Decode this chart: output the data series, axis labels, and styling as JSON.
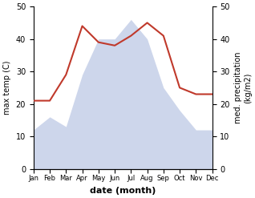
{
  "months": [
    "Jan",
    "Feb",
    "Mar",
    "Apr",
    "May",
    "Jun",
    "Jul",
    "Aug",
    "Sep",
    "Oct",
    "Nov",
    "Dec"
  ],
  "temperature": [
    21,
    21,
    29,
    44,
    39,
    38,
    41,
    45,
    41,
    25,
    23,
    23
  ],
  "precipitation": [
    12,
    16,
    13,
    29,
    40,
    40,
    46,
    40,
    25,
    18,
    12,
    12
  ],
  "temp_color": "#c0392b",
  "precip_color_fill": "#c5cfe8",
  "ylabel_left": "max temp (C)",
  "ylabel_right": "med. precipitation\n(kg/m2)",
  "xlabel": "date (month)",
  "ylim_left": [
    0,
    50
  ],
  "ylim_right": [
    0,
    50
  ],
  "yticks": [
    0,
    10,
    20,
    30,
    40,
    50
  ],
  "background_color": "#ffffff"
}
